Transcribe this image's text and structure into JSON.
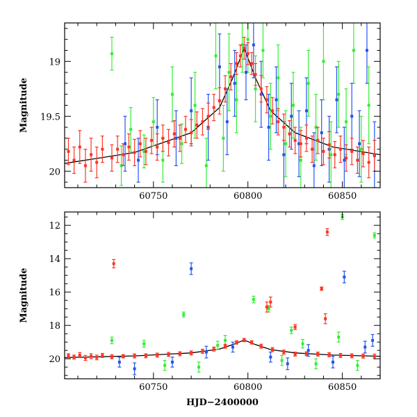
{
  "chart_data": [
    {
      "type": "scatter",
      "panel": "top",
      "xlim": [
        60703,
        60870
      ],
      "ylim": [
        20.15,
        18.65
      ],
      "y_inverted": true,
      "grid": false,
      "x_ticks": [
        60750,
        60800,
        60850
      ],
      "x_tick_labels": [
        "60750",
        "60800",
        "60850"
      ],
      "y_ticks": [
        19,
        19.5,
        20
      ],
      "y_tick_labels": [
        "19",
        "19.5",
        "20"
      ],
      "xlabel": "",
      "ylabel": "Magnitude",
      "model_curve": {
        "color": "#000000",
        "points": [
          [
            60703,
            19.93
          ],
          [
            60740,
            19.83
          ],
          [
            60770,
            19.65
          ],
          [
            60785,
            19.42
          ],
          [
            60792,
            19.15
          ],
          [
            60798,
            18.88
          ],
          [
            60804,
            19.15
          ],
          [
            60812,
            19.45
          ],
          [
            60825,
            19.65
          ],
          [
            60845,
            19.78
          ],
          [
            60870,
            19.85
          ]
        ]
      },
      "series": [
        {
          "color": "#33ee33",
          "points": [
            [
              60728,
              18.93,
              0.15
            ],
            [
              60733,
              19.95,
              0.18
            ],
            [
              60738,
              19.62,
              0.2
            ],
            [
              60745,
              19.82,
              0.15
            ],
            [
              60750,
              19.55,
              0.22
            ],
            [
              60755,
              19.9,
              0.2
            ],
            [
              60760,
              19.3,
              0.25
            ],
            [
              60765,
              19.75,
              0.18
            ],
            [
              60772,
              19.4,
              0.3
            ],
            [
              60778,
              19.95,
              0.25
            ],
            [
              60783,
              18.95,
              0.3
            ],
            [
              60787,
              19.7,
              0.3
            ],
            [
              60790,
              19.1,
              0.35
            ],
            [
              60794,
              19.35,
              0.3
            ],
            [
              60797,
              18.85,
              0.25
            ],
            [
              60800,
              18.8,
              0.3
            ],
            [
              60804,
              19.25,
              0.3
            ],
            [
              60808,
              18.9,
              0.25
            ],
            [
              60812,
              19.5,
              0.3
            ],
            [
              60816,
              19.15,
              0.3
            ],
            [
              60820,
              19.75,
              0.3
            ],
            [
              60824,
              19.4,
              0.3
            ],
            [
              60828,
              19.9,
              0.3
            ],
            [
              60832,
              19.2,
              0.3
            ],
            [
              60836,
              19.6,
              0.3
            ],
            [
              60840,
              19.0,
              0.35
            ],
            [
              60844,
              19.85,
              0.3
            ],
            [
              60848,
              19.3,
              0.3
            ],
            [
              60852,
              19.55,
              0.3
            ],
            [
              60856,
              18.9,
              0.3
            ],
            [
              60860,
              19.8,
              0.3
            ],
            [
              60864,
              19.4,
              0.35
            ]
          ]
        },
        {
          "color": "#2255ee",
          "points": [
            [
              60735,
              19.75,
              0.25
            ],
            [
              60742,
              19.9,
              0.2
            ],
            [
              60752,
              19.6,
              0.25
            ],
            [
              60762,
              19.7,
              0.25
            ],
            [
              60770,
              19.45,
              0.3
            ],
            [
              60779,
              19.6,
              0.3
            ],
            [
              60785,
              19.05,
              0.3
            ],
            [
              60789,
              19.55,
              0.3
            ],
            [
              60793,
              19.2,
              0.3
            ],
            [
              60799,
              19.1,
              0.25
            ],
            [
              60803,
              18.85,
              0.3
            ],
            [
              60807,
              19.3,
              0.3
            ],
            [
              60811,
              19.6,
              0.3
            ],
            [
              60815,
              19.35,
              0.3
            ],
            [
              60819,
              19.85,
              0.3
            ],
            [
              60823,
              19.5,
              0.3
            ],
            [
              60827,
              19.75,
              0.3
            ],
            [
              60831,
              19.45,
              0.3
            ],
            [
              60835,
              19.95,
              0.3
            ],
            [
              60839,
              19.65,
              0.3
            ],
            [
              60843,
              19.8,
              0.3
            ],
            [
              60847,
              19.35,
              0.3
            ],
            [
              60851,
              19.9,
              0.3
            ],
            [
              60855,
              19.5,
              0.3
            ],
            [
              60859,
              19.75,
              0.3
            ],
            [
              60863,
              18.9,
              0.3
            ],
            [
              60867,
              19.85,
              0.3
            ]
          ]
        },
        {
          "color": "#ff3322",
          "points": [
            [
              60705,
              19.82,
              0.12
            ],
            [
              60708,
              19.9,
              0.12
            ],
            [
              60711,
              19.78,
              0.15
            ],
            [
              60714,
              19.95,
              0.15
            ],
            [
              60717,
              19.85,
              0.15
            ],
            [
              60720,
              19.92,
              0.14
            ],
            [
              60723,
              19.8,
              0.12
            ],
            [
              60728,
              19.88,
              0.12
            ],
            [
              60731,
              19.8,
              0.12
            ],
            [
              60734,
              19.85,
              0.1
            ],
            [
              60737,
              19.78,
              0.12
            ],
            [
              60740,
              19.83,
              0.12
            ],
            [
              60743,
              19.75,
              0.12
            ],
            [
              60746,
              19.82,
              0.12
            ],
            [
              60749,
              19.72,
              0.12
            ],
            [
              60752,
              19.78,
              0.12
            ],
            [
              60755,
              19.7,
              0.12
            ],
            [
              60758,
              19.74,
              0.12
            ],
            [
              60761,
              19.66,
              0.12
            ],
            [
              60764,
              19.7,
              0.12
            ],
            [
              60767,
              19.62,
              0.12
            ],
            [
              60770,
              19.65,
              0.12
            ],
            [
              60773,
              19.58,
              0.12
            ],
            [
              60776,
              19.55,
              0.12
            ],
            [
              60779,
              19.5,
              0.12
            ],
            [
              60782,
              19.42,
              0.12
            ],
            [
              60785,
              19.36,
              0.12
            ],
            [
              60788,
              19.25,
              0.12
            ],
            [
              60791,
              19.14,
              0.12
            ],
            [
              60794,
              19.02,
              0.1
            ],
            [
              60796,
              18.95,
              0.1
            ],
            [
              60798,
              18.88,
              0.1
            ],
            [
              60800,
              18.93,
              0.1
            ],
            [
              60802,
              19.02,
              0.1
            ],
            [
              60804,
              19.12,
              0.1
            ],
            [
              60807,
              19.25,
              0.12
            ],
            [
              60810,
              19.35,
              0.12
            ],
            [
              60813,
              19.45,
              0.12
            ],
            [
              60816,
              19.55,
              0.12
            ],
            [
              60819,
              19.6,
              0.12
            ],
            [
              60822,
              19.66,
              0.12
            ],
            [
              60825,
              19.72,
              0.12
            ],
            [
              60828,
              19.75,
              0.12
            ],
            [
              60831,
              19.7,
              0.12
            ],
            [
              60834,
              19.8,
              0.12
            ],
            [
              60837,
              19.72,
              0.12
            ],
            [
              60840,
              19.82,
              0.12
            ],
            [
              60843,
              19.76,
              0.12
            ],
            [
              60846,
              19.85,
              0.12
            ],
            [
              60849,
              19.8,
              0.12
            ],
            [
              60852,
              19.88,
              0.12
            ],
            [
              60855,
              19.82,
              0.12
            ],
            [
              60858,
              19.9,
              0.12
            ],
            [
              60861,
              19.84,
              0.12
            ],
            [
              60864,
              19.92,
              0.14
            ],
            [
              60867,
              19.86,
              0.14
            ]
          ]
        }
      ]
    },
    {
      "type": "scatter",
      "panel": "bottom",
      "xlim": [
        60703,
        60870
      ],
      "ylim": [
        21.2,
        11.2
      ],
      "y_inverted": true,
      "grid": false,
      "x_ticks": [
        60750,
        60800,
        60850
      ],
      "x_tick_labels": [
        "60750",
        "60800",
        "60850"
      ],
      "y_ticks": [
        12,
        14,
        16,
        18,
        20
      ],
      "y_tick_labels": [
        "12",
        "14",
        "16",
        "18",
        "20"
      ],
      "xlabel": "HJD−2400000",
      "ylabel": "Magnitude",
      "model_curve": {
        "color": "#000000",
        "points": [
          [
            60703,
            19.93
          ],
          [
            60740,
            19.83
          ],
          [
            60770,
            19.65
          ],
          [
            60785,
            19.42
          ],
          [
            60792,
            19.15
          ],
          [
            60798,
            18.88
          ],
          [
            60804,
            19.15
          ],
          [
            60812,
            19.45
          ],
          [
            60825,
            19.65
          ],
          [
            60845,
            19.78
          ],
          [
            60870,
            19.85
          ]
        ]
      },
      "series": [
        {
          "color": "#33ee33",
          "points": [
            [
              60728,
              18.9,
              0.2
            ],
            [
              60745,
              19.1,
              0.2
            ],
            [
              60766,
              17.35,
              0.15
            ],
            [
              60784,
              19.2,
              0.25
            ],
            [
              60803,
              16.45,
              0.2
            ],
            [
              60811,
              17.0,
              0.2
            ],
            [
              60823,
              18.3,
              0.2
            ],
            [
              60829,
              19.1,
              0.25
            ],
            [
              60850,
              11.5,
              0.15
            ],
            [
              60867,
              12.6,
              0.15
            ],
            [
              60756,
              20.4,
              0.3
            ],
            [
              60774,
              20.5,
              0.3
            ],
            [
              60788,
              18.9,
              0.3
            ],
            [
              60818,
              20.1,
              0.3
            ],
            [
              60836,
              20.3,
              0.3
            ],
            [
              60848,
              18.7,
              0.3
            ],
            [
              60858,
              20.4,
              0.3
            ]
          ]
        },
        {
          "color": "#2255ee",
          "points": [
            [
              60770,
              14.6,
              0.35
            ],
            [
              60851,
              15.1,
              0.35
            ],
            [
              60732,
              20.2,
              0.3
            ],
            [
              60740,
              20.6,
              0.35
            ],
            [
              60760,
              20.2,
              0.3
            ],
            [
              60778,
              19.6,
              0.35
            ],
            [
              60792,
              19.3,
              0.3
            ],
            [
              60812,
              19.9,
              0.3
            ],
            [
              60821,
              20.3,
              0.35
            ],
            [
              60832,
              19.5,
              0.35
            ],
            [
              60845,
              20.2,
              0.35
            ],
            [
              60862,
              19.3,
              0.35
            ],
            [
              60866,
              18.9,
              0.35
            ]
          ]
        },
        {
          "color": "#ff3322",
          "points": [
            [
              60729,
              14.3,
              0.25
            ],
            [
              60810,
              16.9,
              0.3
            ],
            [
              60812,
              16.6,
              0.3
            ],
            [
              60825,
              18.1,
              0.15
            ],
            [
              60839,
              15.8,
              0.1
            ],
            [
              60842,
              12.4,
              0.2
            ],
            [
              60841,
              17.6,
              0.3
            ],
            [
              60705,
              19.82,
              0.12
            ],
            [
              60708,
              19.9,
              0.12
            ],
            [
              60711,
              19.78,
              0.15
            ],
            [
              60714,
              19.95,
              0.15
            ],
            [
              60717,
              19.85,
              0.15
            ],
            [
              60720,
              19.92,
              0.14
            ],
            [
              60723,
              19.8,
              0.12
            ],
            [
              60728,
              19.88,
              0.12
            ],
            [
              60734,
              19.85,
              0.1
            ],
            [
              60740,
              19.83,
              0.12
            ],
            [
              60746,
              19.82,
              0.12
            ],
            [
              60752,
              19.78,
              0.12
            ],
            [
              60758,
              19.74,
              0.12
            ],
            [
              60764,
              19.7,
              0.12
            ],
            [
              60770,
              19.65,
              0.12
            ],
            [
              60776,
              19.55,
              0.12
            ],
            [
              60782,
              19.42,
              0.12
            ],
            [
              60788,
              19.25,
              0.12
            ],
            [
              60794,
              19.02,
              0.1
            ],
            [
              60798,
              18.88,
              0.1
            ],
            [
              60802,
              19.02,
              0.1
            ],
            [
              60807,
              19.25,
              0.12
            ],
            [
              60813,
              19.45,
              0.12
            ],
            [
              60819,
              19.6,
              0.12
            ],
            [
              60825,
              19.72,
              0.12
            ],
            [
              60831,
              19.7,
              0.12
            ],
            [
              60837,
              19.72,
              0.12
            ],
            [
              60843,
              19.76,
              0.12
            ],
            [
              60849,
              19.8,
              0.12
            ],
            [
              60855,
              19.82,
              0.12
            ],
            [
              60861,
              19.84,
              0.12
            ],
            [
              60867,
              19.86,
              0.14
            ]
          ]
        }
      ]
    }
  ]
}
